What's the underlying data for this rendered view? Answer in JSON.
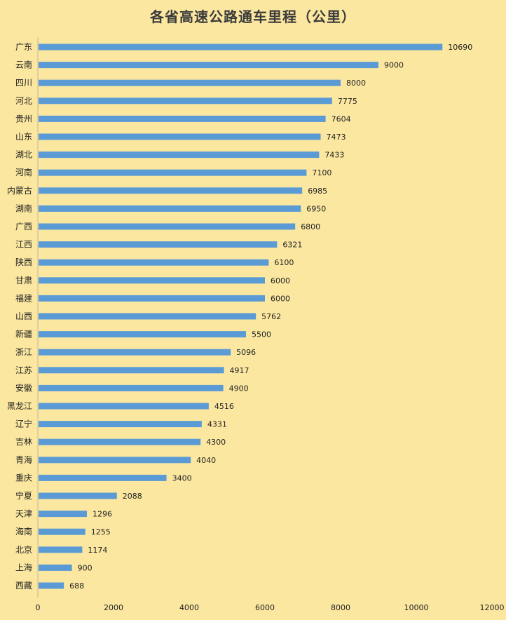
{
  "chart_data": {
    "type": "bar",
    "orientation": "horizontal",
    "title": "各省高速公路通车里程（公里）",
    "xlabel": "",
    "ylabel": "",
    "xlim": [
      0,
      12000
    ],
    "x_ticks": [
      "0",
      "2000",
      "4000",
      "6000",
      "8000",
      "10000",
      "12000"
    ],
    "grid": false,
    "legend": "none",
    "categories": [
      "广东",
      "云南",
      "四川",
      "河北",
      "贵州",
      "山东",
      "湖北",
      "河南",
      "内蒙古",
      "湖南",
      "广西",
      "江西",
      "陕西",
      "甘肃",
      "福建",
      "山西",
      "新疆",
      "浙江",
      "江苏",
      "安徽",
      "黑龙江",
      "辽宁",
      "吉林",
      "青海",
      "重庆",
      "宁夏",
      "天津",
      "海南",
      "北京",
      "上海",
      "西藏"
    ],
    "values": [
      10690,
      9000,
      8000,
      7775,
      7604,
      7473,
      7433,
      7100,
      6985,
      6950,
      6800,
      6321,
      6100,
      6000,
      6000,
      5762,
      5500,
      5096,
      4917,
      4900,
      4516,
      4331,
      4300,
      4040,
      3400,
      2088,
      1296,
      1255,
      1174,
      900,
      688
    ],
    "data_labels": [
      "10690",
      "9000",
      "8000",
      "7775",
      "7604",
      "7473",
      "7433",
      "7100",
      "6985",
      "6950",
      "6800",
      "6321",
      "6100",
      "6000",
      "6000",
      "5762",
      "5500",
      "5096",
      "4917",
      "4900",
      "4516",
      "4331",
      "4300",
      "4040",
      "3400",
      "2088",
      "1296",
      "1255",
      "1174",
      "900",
      "688"
    ],
    "colors": {
      "background": "#fbe7a0",
      "bar": "#5b9bd5",
      "axis": "#bfb7a0",
      "text": "#222222"
    }
  }
}
